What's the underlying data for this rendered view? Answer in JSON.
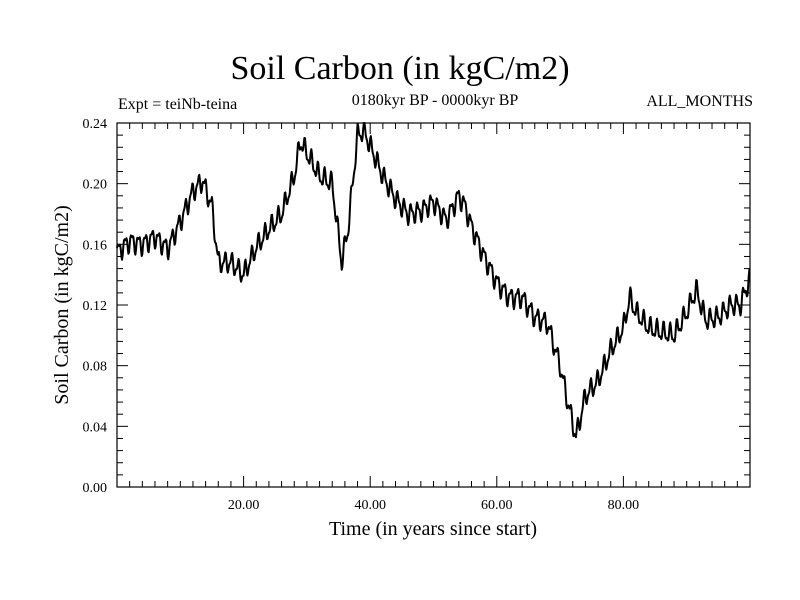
{
  "chart_data": {
    "type": "line",
    "title": "Soil Carbon (in kgC/m2)",
    "subtitle": "0180kyr BP - 0000kyr BP",
    "left_label": "Expt = teiNb-teina",
    "right_label": "ALL_MONTHS",
    "xlabel": "Time (in years since start)",
    "ylabel": "Soil Carbon (in kgC/m2)",
    "xlim": [
      0,
      100
    ],
    "ylim": [
      0,
      0.24
    ],
    "x_ticks": [
      20,
      40,
      60,
      80
    ],
    "x_tick_labels": [
      "20.00",
      "40.00",
      "60.00",
      "80.00"
    ],
    "y_ticks": [
      0,
      0.04,
      0.08,
      0.12,
      0.16,
      0.2,
      0.24
    ],
    "y_tick_labels": [
      "0.00",
      "0.04",
      "0.08",
      "0.12",
      "0.16",
      "0.20",
      "0.24"
    ],
    "series": [
      {
        "name": "Soil Carbon",
        "x": [
          0,
          2,
          4,
          6,
          8,
          10,
          12,
          13.5,
          15,
          16,
          18,
          20,
          22,
          24,
          26,
          28,
          29,
          30,
          32,
          34,
          35.5,
          36.5,
          38,
          39,
          40,
          42,
          44,
          46,
          48,
          50,
          52,
          54,
          55,
          56,
          58,
          60,
          62,
          64,
          66,
          68,
          70,
          71,
          72.5,
          74,
          76,
          78,
          80,
          81,
          82,
          84,
          86,
          88,
          90,
          91.5,
          93,
          95,
          97,
          98.5,
          100
        ],
        "values": [
          0.155,
          0.162,
          0.16,
          0.165,
          0.157,
          0.175,
          0.195,
          0.202,
          0.185,
          0.148,
          0.148,
          0.14,
          0.158,
          0.17,
          0.18,
          0.205,
          0.228,
          0.22,
          0.205,
          0.2,
          0.148,
          0.17,
          0.232,
          0.235,
          0.225,
          0.205,
          0.19,
          0.18,
          0.182,
          0.188,
          0.176,
          0.192,
          0.185,
          0.172,
          0.152,
          0.135,
          0.125,
          0.125,
          0.112,
          0.108,
          0.08,
          0.06,
          0.033,
          0.06,
          0.07,
          0.09,
          0.105,
          0.125,
          0.115,
          0.105,
          0.102,
          0.1,
          0.115,
          0.13,
          0.11,
          0.112,
          0.12,
          0.12,
          0.138
        ]
      }
    ]
  }
}
